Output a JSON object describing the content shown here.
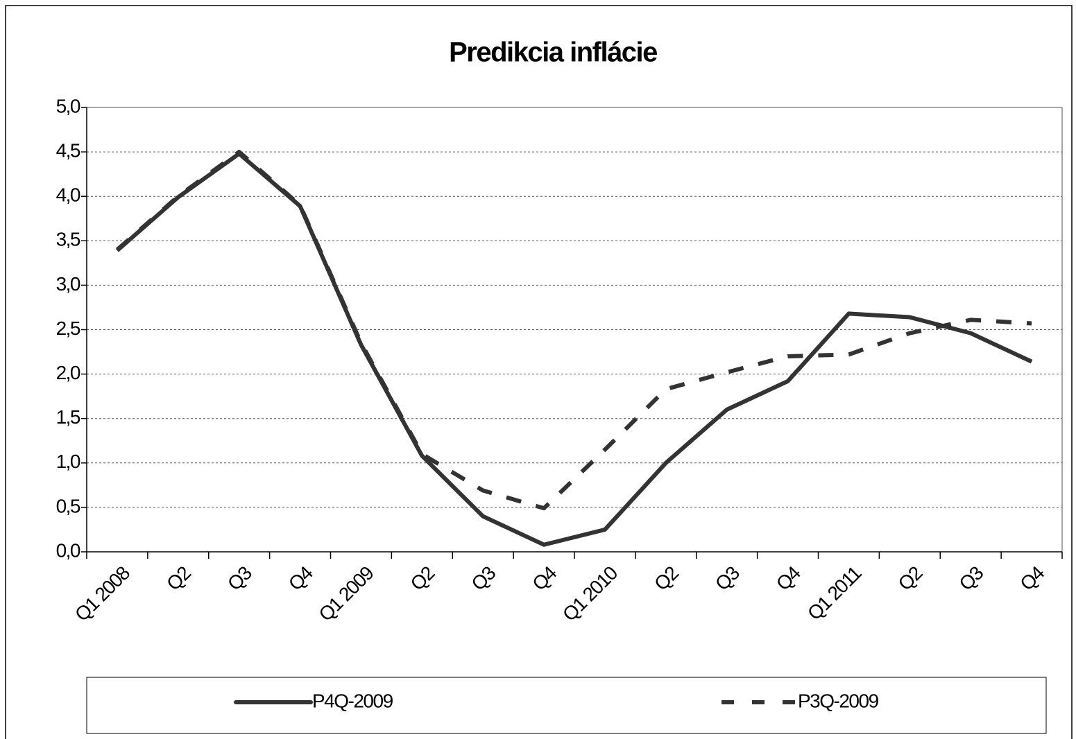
{
  "chart_data": {
    "type": "line",
    "title": "Predikcia inflácie",
    "categories": [
      "Q1 2008",
      "Q2",
      "Q3",
      "Q4",
      "Q1 2009",
      "Q2",
      "Q3",
      "Q4",
      "Q1 2010",
      "Q2",
      "Q3",
      "Q4",
      "Q1 2011",
      "Q2",
      "Q3",
      "Q4"
    ],
    "series": [
      {
        "name": "P4Q-2009",
        "color": "#333333",
        "dash": "solid",
        "values": [
          3.39,
          3.99,
          4.48,
          3.89,
          2.33,
          1.08,
          0.4,
          0.08,
          0.25,
          1.0,
          1.6,
          1.92,
          2.68,
          2.64,
          2.46,
          2.14
        ]
      },
      {
        "name": "P3Q-2009",
        "color": "#333333",
        "dash": "dashed",
        "values": [
          3.4,
          4.0,
          4.5,
          3.9,
          2.35,
          1.1,
          0.69,
          0.49,
          1.15,
          1.83,
          2.02,
          2.2,
          2.22,
          2.46,
          2.61,
          2.57
        ]
      }
    ],
    "ylim": [
      0,
      5
    ],
    "yticks": [
      {
        "value": 0,
        "label": "0,0"
      },
      {
        "value": 0.5,
        "label": "0,5"
      },
      {
        "value": 1,
        "label": "1,0"
      },
      {
        "value": 1.5,
        "label": "1,5"
      },
      {
        "value": 2,
        "label": "2,0"
      },
      {
        "value": 2.5,
        "label": "2,5"
      },
      {
        "value": 3,
        "label": "3,0"
      },
      {
        "value": 3.5,
        "label": "3,5"
      },
      {
        "value": 4,
        "label": "4,0"
      },
      {
        "value": 4.5,
        "label": "4,5"
      },
      {
        "value": 5,
        "label": "5,0"
      }
    ],
    "grid": true,
    "legend": "bottom"
  }
}
